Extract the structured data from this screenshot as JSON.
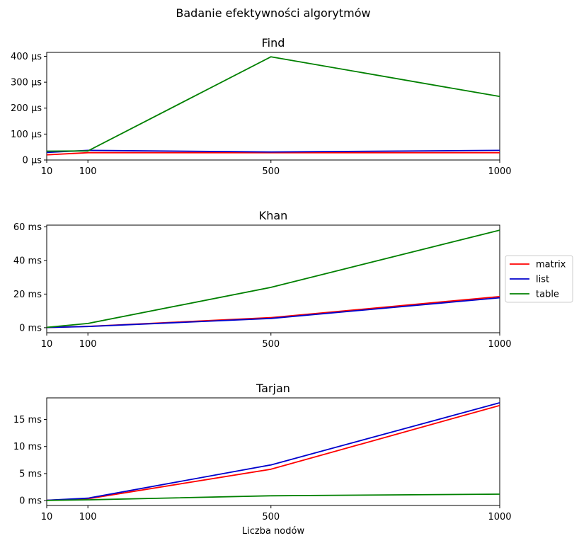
{
  "figure": {
    "suptitle": "Badanie efektywności algorytmów",
    "xlabel": "Liczba nodów"
  },
  "legend": {
    "placement": "right of middle subplot",
    "entries": [
      {
        "label": "matrix",
        "color": "#ff0000"
      },
      {
        "label": "list",
        "color": "#0000cc"
      },
      {
        "label": "table",
        "color": "#008000"
      }
    ]
  },
  "chart_data": [
    {
      "type": "line",
      "title": "Find",
      "x": [
        10,
        100,
        500,
        1000
      ],
      "xticks": [
        10,
        100,
        500,
        1000
      ],
      "xlim": [
        10,
        1000
      ],
      "ylim": [
        0,
        415
      ],
      "yticks": [
        0,
        100,
        200,
        300,
        400
      ],
      "ytick_labels": [
        "0 µs",
        "100 µs",
        "200 µs",
        "300 µs",
        "400 µs"
      ],
      "series": [
        {
          "name": "matrix",
          "color": "#ff0000",
          "values": [
            20,
            28,
            28,
            28
          ]
        },
        {
          "name": "list",
          "color": "#0000cc",
          "values": [
            29,
            37,
            31,
            37
          ]
        },
        {
          "name": "table",
          "color": "#008000",
          "values": [
            34,
            35,
            398,
            245
          ]
        }
      ]
    },
    {
      "type": "line",
      "title": "Khan",
      "x": [
        10,
        100,
        500,
        1000
      ],
      "xticks": [
        10,
        100,
        500,
        1000
      ],
      "xlim": [
        10,
        1000
      ],
      "ylim": [
        -3,
        61
      ],
      "yticks": [
        0,
        20,
        40,
        60
      ],
      "ytick_labels": [
        "0 ms",
        "20 ms",
        "40 ms",
        "60 ms"
      ],
      "series": [
        {
          "name": "matrix",
          "color": "#ff0000",
          "values": [
            0.1,
            0.8,
            6.0,
            18.5
          ]
        },
        {
          "name": "list",
          "color": "#0000cc",
          "values": [
            0.1,
            0.7,
            5.5,
            17.8
          ]
        },
        {
          "name": "table",
          "color": "#008000",
          "values": [
            0.2,
            2.5,
            24.0,
            58.0
          ]
        }
      ]
    },
    {
      "type": "line",
      "title": "Tarjan",
      "x": [
        10,
        100,
        500,
        1000
      ],
      "xticks": [
        10,
        100,
        500,
        1000
      ],
      "xlim": [
        10,
        1000
      ],
      "ylim": [
        -0.9,
        19
      ],
      "yticks": [
        0,
        5,
        10,
        15
      ],
      "ytick_labels": [
        "0 ms",
        "5 ms",
        "10 ms",
        "15 ms"
      ],
      "series": [
        {
          "name": "matrix",
          "color": "#ff0000",
          "values": [
            0.05,
            0.35,
            5.8,
            17.6
          ]
        },
        {
          "name": "list",
          "color": "#0000cc",
          "values": [
            0.05,
            0.45,
            6.6,
            18.1
          ]
        },
        {
          "name": "table",
          "color": "#008000",
          "values": [
            0.03,
            0.15,
            0.9,
            1.2
          ]
        }
      ]
    }
  ]
}
